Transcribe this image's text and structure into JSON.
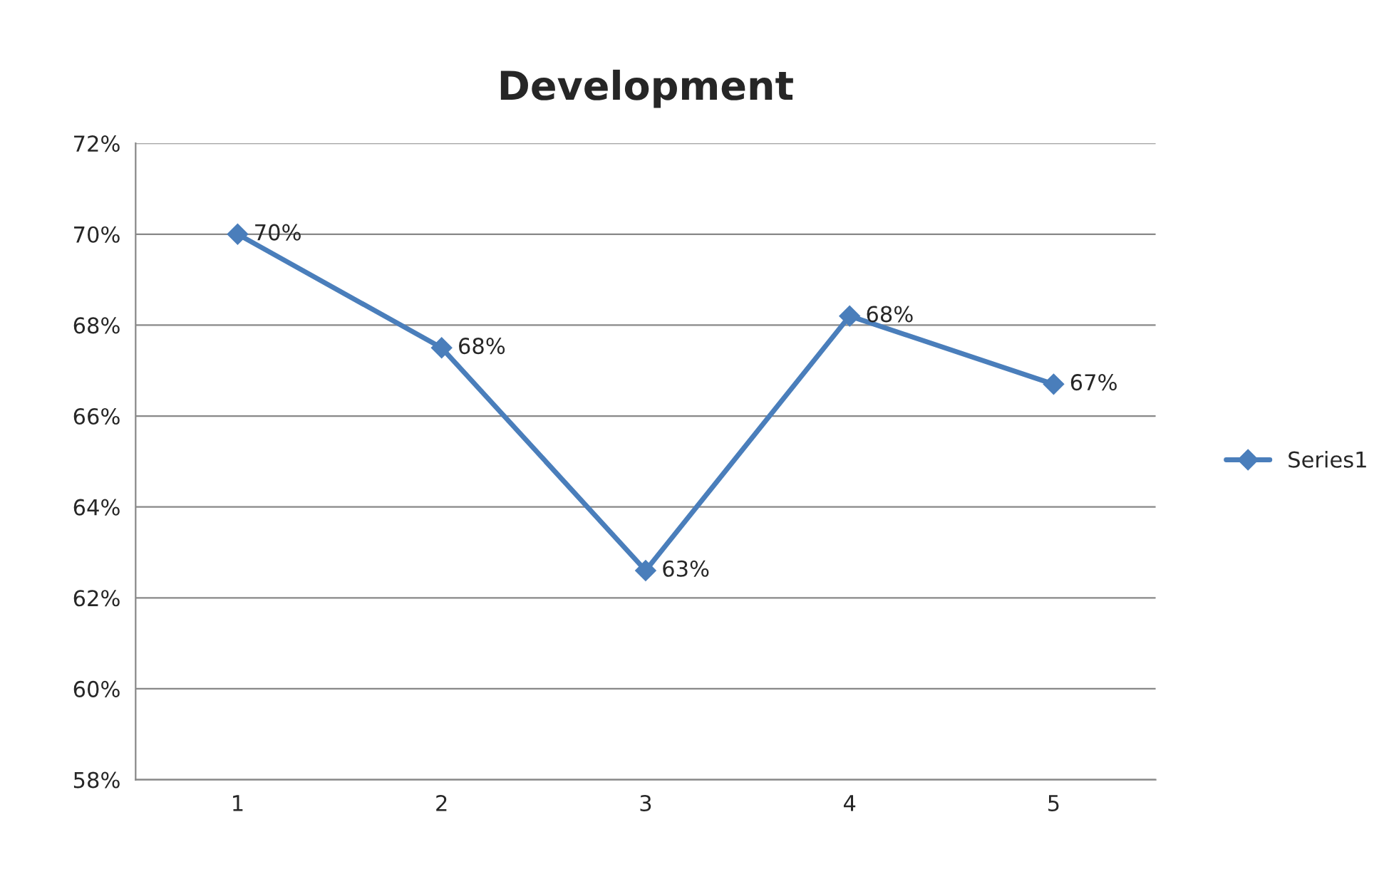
{
  "chart_data": {
    "type": "line",
    "title": "Development",
    "categories": [
      "1",
      "2",
      "3",
      "4",
      "5"
    ],
    "series": [
      {
        "name": "Series1",
        "color": "#4a7ebb",
        "values": [
          70.0,
          67.5,
          62.6,
          68.2,
          66.7
        ],
        "value_labels": [
          "70%",
          "68%",
          "63%",
          "68%",
          "67%"
        ]
      }
    ],
    "ylim": [
      58,
      72
    ],
    "yticks": [
      {
        "value": 58,
        "label": "58%"
      },
      {
        "value": 60,
        "label": "60%"
      },
      {
        "value": 62,
        "label": "62%"
      },
      {
        "value": 64,
        "label": "64%"
      },
      {
        "value": 66,
        "label": "66%"
      },
      {
        "value": 68,
        "label": "68%"
      },
      {
        "value": 70,
        "label": "70%"
      },
      {
        "value": 72,
        "label": "72%"
      }
    ],
    "grid": "y",
    "legend": "right",
    "marker": "diamond",
    "line_style": "solid"
  }
}
